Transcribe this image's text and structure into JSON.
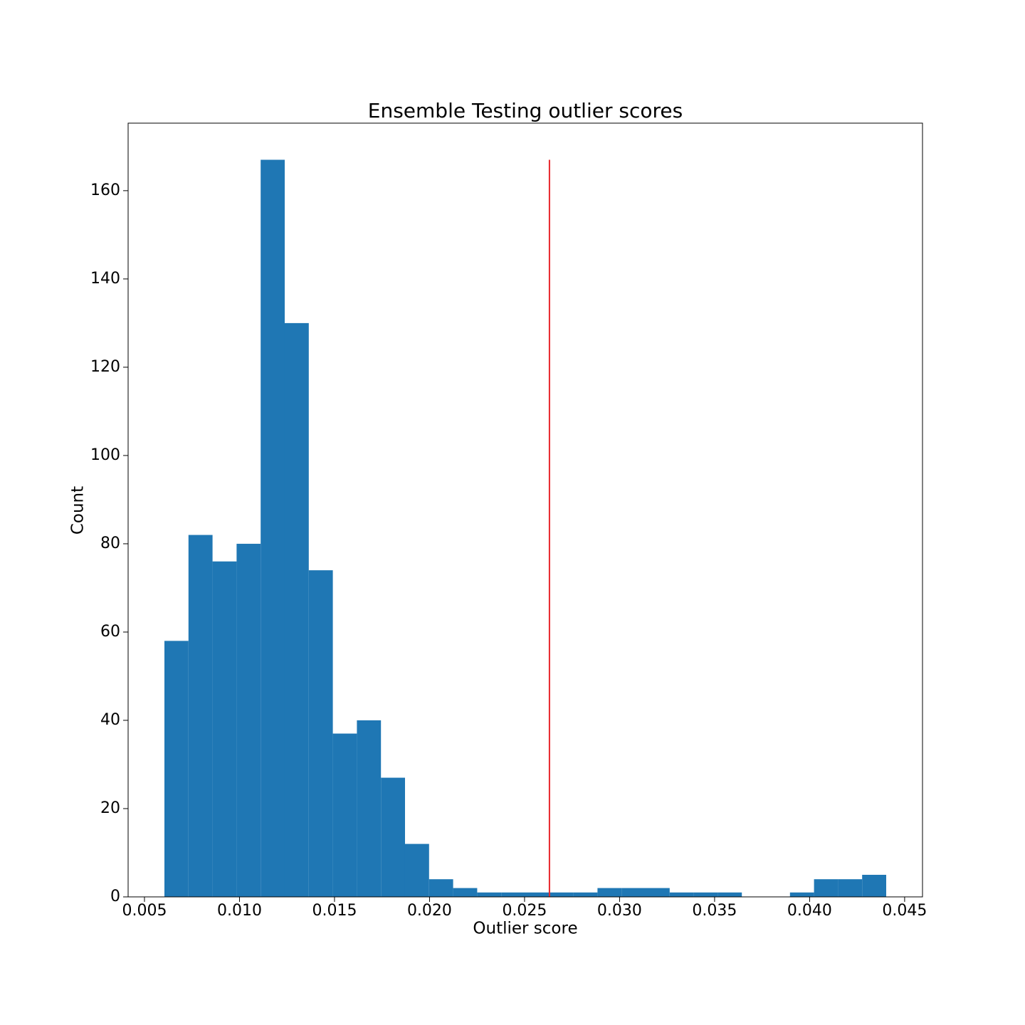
{
  "chart_data": {
    "type": "histogram",
    "title": "Ensemble Testing outlier scores",
    "x_label": "Outlier score",
    "y_label": "Count",
    "bins": [
      0.00605,
      0.007316,
      0.008582,
      0.009848,
      0.011114,
      0.01238,
      0.013646,
      0.014912,
      0.016178,
      0.017444,
      0.01871,
      0.019976,
      0.021242,
      0.022508,
      0.023774,
      0.02504,
      0.026306,
      0.027572,
      0.028838,
      0.030104,
      0.03137,
      0.032636,
      0.033902,
      0.035168,
      0.036434,
      0.0377,
      0.038966,
      0.040232,
      0.041498,
      0.042764,
      0.04403
    ],
    "values": [
      58,
      82,
      76,
      80,
      167,
      130,
      74,
      37,
      40,
      27,
      12,
      4,
      2,
      1,
      1,
      1,
      1,
      1,
      2,
      2,
      2,
      1,
      1,
      1,
      0,
      0,
      1,
      4,
      4,
      5
    ],
    "color": "#1f77b4",
    "threshold": {
      "x": 0.02631,
      "ymax": 167,
      "color": "#e8262a"
    },
    "xlim": [
      0.00414,
      0.04594
    ],
    "xticks": [
      0.005,
      {
        "value": 0.01,
        "label": "0.010"
      },
      0.015,
      {
        "value": 0.02,
        "label": "0.020"
      },
      0.025,
      {
        "value": 0.03,
        "label": "0.030"
      },
      0.035,
      {
        "value": 0.04,
        "label": "0.040"
      },
      0.045
    ],
    "ylim": [
      0,
      175.3
    ],
    "yticks": [
      0,
      20,
      40,
      60,
      80,
      100,
      120,
      140,
      160
    ],
    "grid": false
  }
}
